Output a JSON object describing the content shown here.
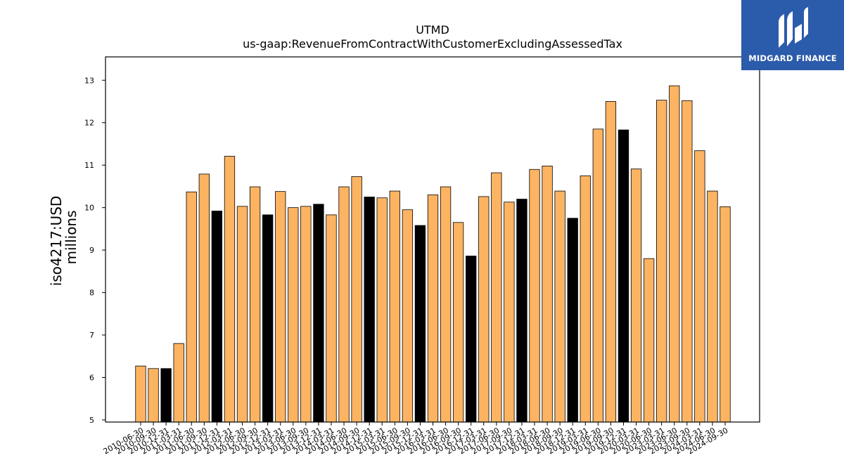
{
  "chart_data": {
    "type": "bar",
    "title": "UTMD",
    "subtitle": "us-gaap:RevenueFromContractWithCustomerExcludingAssessedTax",
    "ylabel_line1": "iso4217:USD",
    "ylabel_line2": "millions",
    "ylim": [
      4.95,
      13.55
    ],
    "yticks": [
      5,
      6,
      7,
      8,
      9,
      10,
      11,
      12,
      13
    ],
    "grid": false,
    "legend": "none",
    "colors": {
      "quarter": "#fdb462",
      "fiscal_year_end": "#000000",
      "edge": "#000000"
    },
    "categories": [
      "2010-06-30",
      "2010-09-30",
      "2010-12-31",
      "2011-03-31",
      "2011-06-30",
      "2011-09-30",
      "2011-12-31",
      "2012-03-31",
      "2012-06-30",
      "2012-09-30",
      "2012-12-31",
      "2013-03-31",
      "2013-06-30",
      "2013-09-30",
      "2013-12-31",
      "2014-03-31",
      "2014-06-30",
      "2014-09-30",
      "2014-12-31",
      "2015-03-31",
      "2015-06-30",
      "2015-09-30",
      "2015-12-31",
      "2016-03-31",
      "2016-06-30",
      "2016-09-30",
      "2016-12-31",
      "2017-03-31",
      "2017-06-30",
      "2017-09-30",
      "2017-12-31",
      "2018-03-31",
      "2018-06-30",
      "2018-09-30",
      "2018-12-31",
      "2019-03-31",
      "2019-06-30",
      "2019-09-30",
      "2019-12-31",
      "2020-03-31",
      "2020-06-30",
      "2023-03-31",
      "2023-06-30",
      "2023-09-30",
      "2024-03-31",
      "2024-06-30",
      "2024-09-30"
    ],
    "values": [
      6.27,
      6.21,
      6.21,
      6.8,
      10.37,
      10.79,
      9.92,
      11.21,
      10.03,
      10.49,
      9.83,
      10.38,
      10.0,
      10.03,
      10.08,
      9.83,
      10.49,
      10.73,
      10.25,
      10.23,
      10.39,
      9.95,
      9.58,
      10.3,
      10.49,
      9.65,
      8.86,
      10.26,
      10.82,
      10.13,
      10.2,
      10.9,
      10.98,
      10.39,
      9.75,
      10.75,
      11.85,
      12.5,
      11.83,
      10.91,
      8.8,
      12.53,
      12.87,
      12.52,
      11.34,
      10.39,
      10.02
    ],
    "fiscal_year_end": [
      false,
      false,
      true,
      false,
      false,
      false,
      true,
      false,
      false,
      false,
      true,
      false,
      false,
      false,
      true,
      false,
      false,
      false,
      true,
      false,
      false,
      false,
      true,
      false,
      false,
      false,
      true,
      false,
      false,
      false,
      true,
      false,
      false,
      false,
      true,
      false,
      false,
      false,
      true,
      false,
      false,
      false,
      false,
      false,
      false,
      false,
      false
    ]
  },
  "logo": {
    "text": "MIDGARD FINANCE"
  }
}
